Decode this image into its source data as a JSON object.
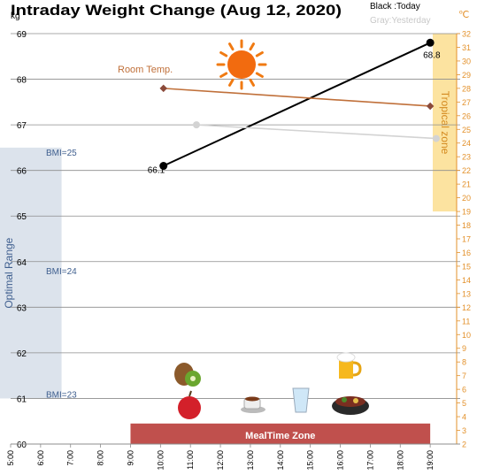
{
  "header": {
    "title": "Intraday Weight Change (Aug 12, 2020)",
    "legend_today": "Black :Today",
    "legend_yesterday": "Gray:Yesterday"
  },
  "chart_data": {
    "type": "line",
    "title": "Intraday Weight Change (Aug 12, 2020)",
    "left_axis": {
      "unit": "kg",
      "ylim": [
        60,
        69
      ],
      "ticks": [
        "60",
        "61",
        "62",
        "63",
        "64",
        "65",
        "66",
        "67",
        "68",
        "69"
      ]
    },
    "right_axis": {
      "unit": "℃",
      "ylim": [
        2,
        32
      ],
      "ticks": [
        "2",
        "3",
        "4",
        "5",
        "6",
        "7",
        "8",
        "9",
        "10",
        "11",
        "12",
        "13",
        "14",
        "15",
        "16",
        "17",
        "18",
        "19",
        "20",
        "21",
        "22",
        "23",
        "24",
        "25",
        "26",
        "27",
        "28",
        "29",
        "30",
        "31",
        "32"
      ]
    },
    "x_axis": {
      "range_hours": [
        5,
        20
      ],
      "tick_labels": [
        "5:00",
        "6:00",
        "7:00",
        "8:00",
        "9:00",
        "10:00",
        "11:00",
        "12:00",
        "13:00",
        "14:00",
        "15:00",
        "16:00",
        "17:00",
        "18:00",
        "19:00"
      ],
      "tick_hours": [
        5,
        6,
        7,
        8,
        9,
        10,
        11,
        12,
        13,
        14,
        15,
        16,
        17,
        18,
        19
      ]
    },
    "series": [
      {
        "name": "Today",
        "color": "#000000",
        "axis": "left",
        "points": [
          {
            "x": 10.1,
            "y": 66.1
          },
          {
            "x": 19.0,
            "y": 68.8
          }
        ],
        "labels": [
          "66.1",
          "68.8"
        ]
      },
      {
        "name": "Yesterday",
        "color": "#d3d3d3",
        "axis": "left",
        "points": [
          {
            "x": 11.2,
            "y": 67.0
          },
          {
            "x": 19.2,
            "y": 66.7
          }
        ]
      },
      {
        "name": "Room Temp.",
        "color": "#c0703a",
        "axis": "right",
        "points": [
          {
            "x": 10.1,
            "y": 28.0
          },
          {
            "x": 19.0,
            "y": 26.7
          }
        ]
      }
    ],
    "bands": {
      "optimal": {
        "label": "Optimal Range",
        "color": "#dce3ec",
        "text_color": "#3f5f8f",
        "y_range": [
          61,
          66.5
        ],
        "x_range": [
          5,
          6.7
        ]
      },
      "bmi": [
        {
          "label": "BMI=25",
          "y": 66.4
        },
        {
          "label": "BMI=24",
          "y": 63.8
        },
        {
          "label": "BMI=23",
          "y": 61.1
        }
      ],
      "tropical": {
        "label": "Tropical zone",
        "color": "#fce3a0",
        "text_color": "#d48a1f",
        "y_range_celsius": [
          19,
          32
        ]
      },
      "meal": {
        "label": "MealTime Zone",
        "color": "#c0504d",
        "x_range": [
          9,
          19
        ],
        "y_range": [
          60,
          60.45
        ]
      }
    },
    "annotations": {
      "room_temp_label": "Room Temp."
    },
    "icons": [
      "sun-icon",
      "kiwi-icon",
      "apple-icon",
      "coffee-icon",
      "water-glass-icon",
      "beer-icon",
      "hotpot-icon"
    ],
    "grid": true
  }
}
